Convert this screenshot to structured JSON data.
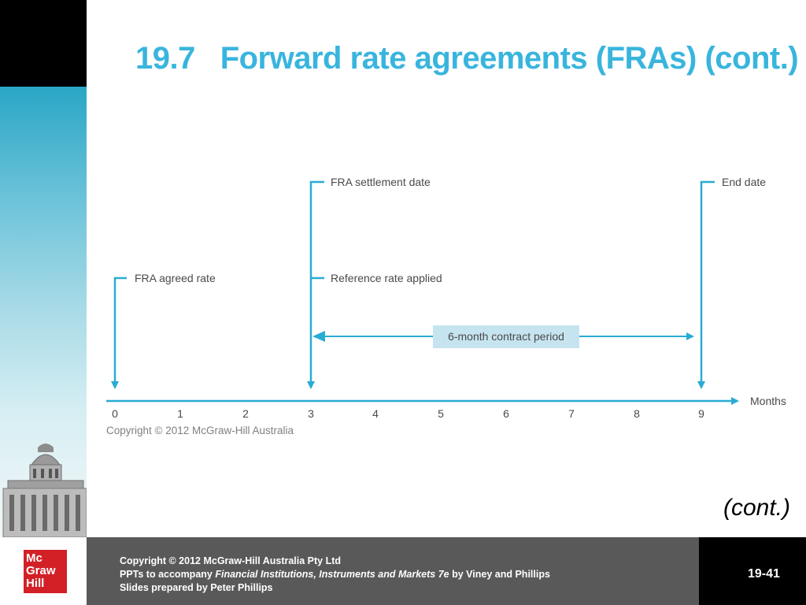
{
  "slide": {
    "title": "19.7   Forward rate agreements (FRAs) (cont.)",
    "cont_label": "(cont.)",
    "page_number": "19-41"
  },
  "logo": {
    "lines": [
      "Mc",
      "Graw",
      "Hill"
    ]
  },
  "footer": {
    "line1": "Copyright © 2012 McGraw-Hill Australia Pty Ltd",
    "line2_prefix": "PPTs to accompany ",
    "line2_italic": "Financial Institutions, Instruments and Markets 7e",
    "line2_suffix": " by Viney and Phillips",
    "line3": "Slides prepared by Peter Phillips"
  },
  "diagram": {
    "axis_label": "Months",
    "ticks": [
      "0",
      "1",
      "2",
      "3",
      "4",
      "5",
      "6",
      "7",
      "8",
      "9"
    ],
    "labels": {
      "fra_agreed_rate": "FRA agreed rate",
      "settlement_date": "FRA settlement date",
      "reference_rate": "Reference rate applied",
      "end_date": "End date",
      "contract_period": "6-month contract period"
    },
    "copyright": "Copyright © 2012 McGraw-Hill Australia",
    "colors": {
      "accent": "#29abd4",
      "box": "#c6e4ef"
    }
  }
}
